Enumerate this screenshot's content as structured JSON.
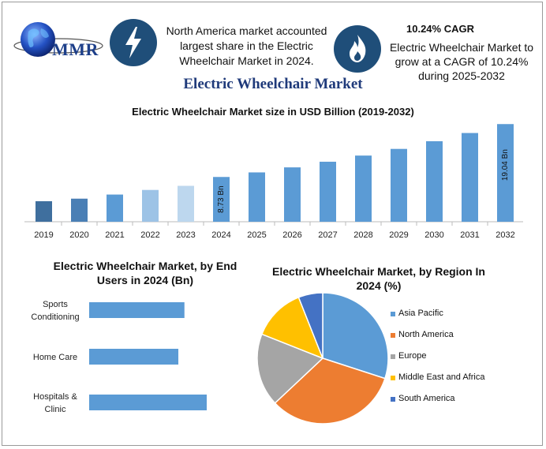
{
  "header": {
    "logo_text": "MMR",
    "na_text": "North America market accounted largest share in the Electric Wheelchair Market in 2024.",
    "cagr_title": "10.24% CAGR",
    "cagr_text": "Electric Wheelchair Market to grow at a CAGR of 10.24% during 2025-2032",
    "main_title": "Electric Wheelchair Market"
  },
  "icons": {
    "logo": "globe-logo-icon",
    "badge1": "lightning-bolt-icon",
    "badge2": "flame-icon"
  },
  "chart_data": [
    {
      "type": "bar",
      "title": "Electric Wheelchair Market size in USD Billion (2019-2032)",
      "categories": [
        "2019",
        "2020",
        "2021",
        "2022",
        "2023",
        "2024",
        "2025",
        "2026",
        "2027",
        "2028",
        "2029",
        "2030",
        "2031",
        "2032"
      ],
      "values": [
        4.0,
        4.5,
        5.3,
        6.2,
        7.0,
        8.73,
        9.62,
        10.6,
        11.7,
        12.9,
        14.2,
        15.7,
        17.3,
        19.04
      ],
      "colors": [
        "#3f6f9e",
        "#4a7fb5",
        "#5b9bd5",
        "#9dc3e6",
        "#bdd7ee",
        "#5b9bd5",
        "#5b9bd5",
        "#5b9bd5",
        "#5b9bd5",
        "#5b9bd5",
        "#5b9bd5",
        "#5b9bd5",
        "#5b9bd5",
        "#5b9bd5"
      ],
      "data_labels": {
        "2024": "8.73 Bn",
        "2032": "19.04 Bn"
      },
      "ylim": [
        0,
        20
      ],
      "grid": false
    },
    {
      "type": "bar",
      "orientation": "horizontal",
      "title": "Electric Wheelchair Market, by End Users in 2024 (Bn)",
      "categories": [
        "Sports Conditioning",
        "Home Care",
        "Hospitals & Clinic"
      ],
      "category_lines": [
        [
          "Sports",
          "Conditioning"
        ],
        [
          "Home Care"
        ],
        [
          "Hospitals &",
          "Clinic"
        ]
      ],
      "values": [
        2.35,
        2.2,
        2.9
      ],
      "xlim": [
        0,
        3.3
      ],
      "color": "#5b9bd5"
    },
    {
      "type": "pie",
      "title": "Electric Wheelchair Market, by Region In 2024 (%)",
      "labels": [
        "Asia Pacific",
        "North America",
        "Europe",
        "Middle East and Africa",
        "South America"
      ],
      "values": [
        30,
        33,
        18,
        13,
        6
      ],
      "colors": [
        "#5b9bd5",
        "#ed7d31",
        "#a5a5a5",
        "#ffc000",
        "#4472c4"
      ],
      "legend": "right"
    }
  ]
}
